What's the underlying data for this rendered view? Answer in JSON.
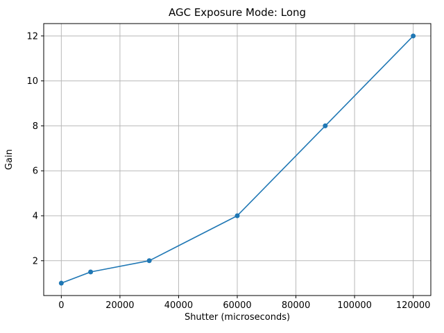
{
  "chart_data": {
    "type": "line",
    "title": "AGC Exposure Mode: Long",
    "xlabel": "Shutter (microseconds)",
    "ylabel": "Gain",
    "x": [
      0,
      10000,
      30000,
      60000,
      90000,
      120000
    ],
    "y": [
      1,
      1.5,
      2,
      4,
      8,
      12
    ],
    "xticks": [
      0,
      20000,
      40000,
      60000,
      80000,
      100000,
      120000
    ],
    "yticks": [
      2,
      4,
      6,
      8,
      10,
      12
    ],
    "xlim": [
      -6000,
      126000
    ],
    "ylim": [
      0.45,
      12.55
    ],
    "grid": true,
    "legend": "none",
    "line_color": "#1f77b4",
    "marker": "o",
    "grid_color": "#b8b8b8",
    "spine_color": "#000000",
    "background_color": "#ffffff"
  }
}
